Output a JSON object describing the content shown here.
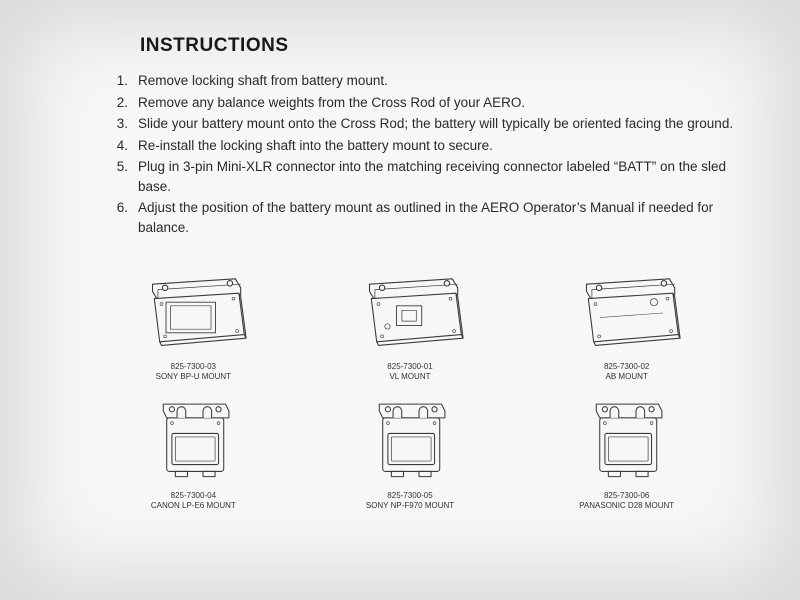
{
  "title": "INSTRUCTIONS",
  "steps": [
    {
      "n": "1.",
      "t": "Remove locking shaft from battery mount."
    },
    {
      "n": "2.",
      "t": "Remove any balance weights from the Cross Rod of your AERO."
    },
    {
      "n": "3.",
      "t": "Slide your battery mount onto the Cross Rod; the battery will typically be oriented facing the ground."
    },
    {
      "n": "4.",
      "t": "Re-install the locking shaft into the battery mount to secure."
    },
    {
      "n": "5.",
      "t": "Plug in 3-pin Mini-XLR connector into the matching receiving connector labeled “BATT” on the sled base."
    },
    {
      "n": "6.",
      "t": "Adjust the position of the battery mount as outlined in the AERO Operator’s Manual if needed for balance."
    }
  ],
  "mounts": [
    {
      "part": "825-7300-03",
      "name": "SONY BP-U MOUNT",
      "shape": "wide"
    },
    {
      "part": "825-7300-01",
      "name": "VL MOUNT",
      "shape": "wide"
    },
    {
      "part": "825-7300-02",
      "name": "AB MOUNT",
      "shape": "wide"
    },
    {
      "part": "825-7300-04",
      "name": "CANON LP-E6 MOUNT",
      "shape": "small"
    },
    {
      "part": "825-7300-05",
      "name": "SONY NP-F970 MOUNT",
      "shape": "small"
    },
    {
      "part": "825-7300-06",
      "name": "PANASONIC D28 MOUNT",
      "shape": "small"
    }
  ],
  "colors": {
    "stroke": "#3a3a3a",
    "fill": "#f7f7f5"
  }
}
